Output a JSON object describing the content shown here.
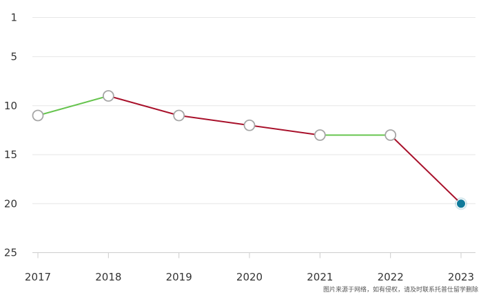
{
  "chart_data": {
    "type": "line",
    "title": "",
    "xlabel": "",
    "ylabel": "",
    "x": [
      "2017",
      "2018",
      "2019",
      "2020",
      "2021",
      "2022",
      "2023"
    ],
    "series": [
      {
        "values": [
          11,
          9,
          11,
          12,
          13,
          13,
          20
        ]
      }
    ],
    "y_ticks": [
      "1",
      "5",
      "10",
      "15",
      "20",
      "25"
    ],
    "y_tick_values": [
      1,
      5,
      10,
      15,
      20,
      25
    ],
    "ylim": [
      1,
      25
    ],
    "y_inverted": true,
    "grid": true,
    "legend": "none",
    "colors": {
      "improving_segment": "#66c44e",
      "declining_segment": "#a8102a",
      "marker_fill": "#ffffff",
      "marker_stroke": "#a6a6a6",
      "highlight_marker": "#0f7a9a",
      "grid": "#e6e6e6",
      "axis": "#cccccc"
    }
  },
  "watermark": "图片来源于网络，如有侵权，请及时联系托普仕留学删除"
}
